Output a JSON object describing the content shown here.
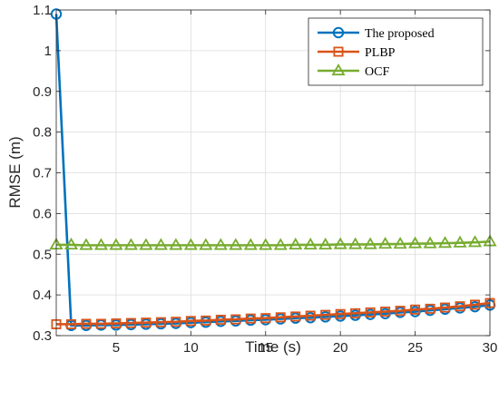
{
  "chart_data": {
    "type": "line",
    "xlabel": "Time (s)",
    "ylabel": "RMSE (m)",
    "xlim": [
      1,
      30
    ],
    "ylim": [
      0.3,
      1.1
    ],
    "x_ticks": [
      5,
      10,
      15,
      20,
      25,
      30
    ],
    "y_ticks": [
      0.3,
      0.4,
      0.5,
      0.6,
      0.7,
      0.8,
      0.9,
      1.0,
      1.1
    ],
    "x_tick_labels": [
      "5",
      "10",
      "15",
      "20",
      "25",
      "30"
    ],
    "y_tick_labels": [
      "0.3",
      "0.4",
      "0.5",
      "0.6",
      "0.7",
      "0.8",
      "0.9",
      "1",
      "1.1"
    ],
    "grid": true,
    "legend_position": "top-right",
    "x": [
      1,
      2,
      3,
      4,
      5,
      6,
      7,
      8,
      9,
      10,
      11,
      12,
      13,
      14,
      15,
      16,
      17,
      18,
      19,
      20,
      21,
      22,
      23,
      24,
      25,
      26,
      27,
      28,
      29,
      30
    ],
    "series": [
      {
        "name": "The proposed",
        "color": "#0072BD",
        "marker": "circle",
        "values": [
          1.09,
          0.325,
          0.325,
          0.326,
          0.326,
          0.327,
          0.328,
          0.329,
          0.33,
          0.332,
          0.333,
          0.335,
          0.336,
          0.338,
          0.339,
          0.341,
          0.343,
          0.344,
          0.346,
          0.348,
          0.35,
          0.352,
          0.354,
          0.357,
          0.359,
          0.362,
          0.365,
          0.368,
          0.371,
          0.375
        ]
      },
      {
        "name": "PLBP",
        "color": "#D95319",
        "marker": "square",
        "values": [
          0.328,
          0.328,
          0.329,
          0.329,
          0.33,
          0.331,
          0.332,
          0.333,
          0.334,
          0.336,
          0.337,
          0.339,
          0.34,
          0.342,
          0.343,
          0.345,
          0.347,
          0.349,
          0.351,
          0.353,
          0.355,
          0.357,
          0.359,
          0.361,
          0.364,
          0.366,
          0.369,
          0.372,
          0.376,
          0.38
        ]
      },
      {
        "name": "OCF",
        "color": "#77AC30",
        "marker": "triangle",
        "values": [
          0.523,
          0.523,
          0.522,
          0.522,
          0.522,
          0.522,
          0.522,
          0.522,
          0.522,
          0.522,
          0.522,
          0.522,
          0.522,
          0.522,
          0.522,
          0.522,
          0.523,
          0.523,
          0.523,
          0.524,
          0.524,
          0.524,
          0.525,
          0.525,
          0.526,
          0.526,
          0.527,
          0.528,
          0.529,
          0.531
        ]
      }
    ]
  }
}
